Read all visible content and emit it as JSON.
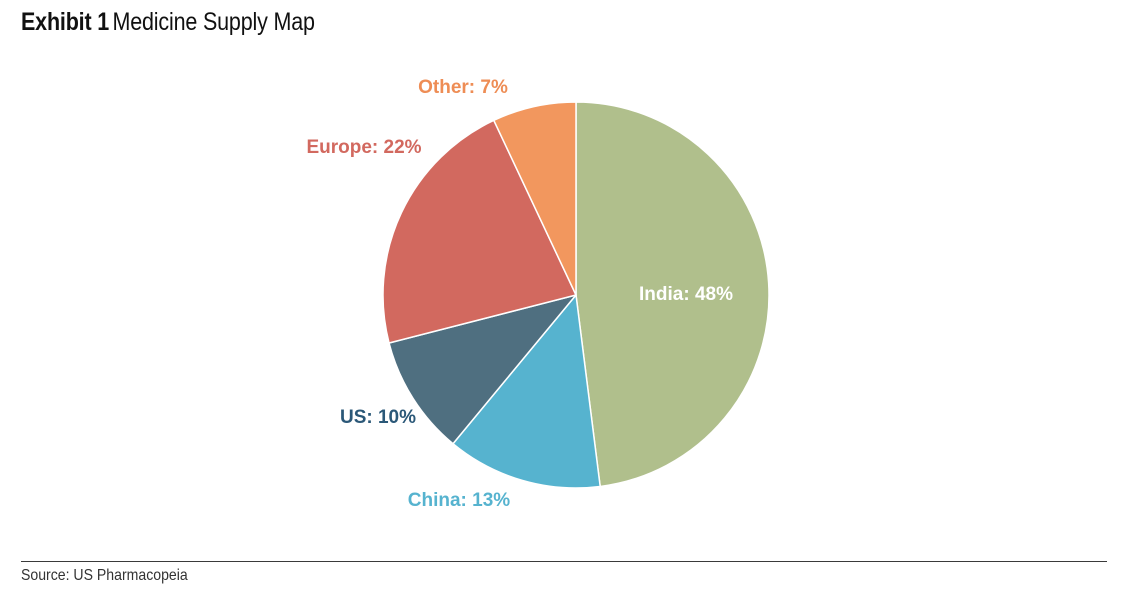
{
  "header": {
    "exhibit_label": "Exhibit 1",
    "title": "Medicine Supply Map"
  },
  "chart_data": {
    "type": "pie",
    "title": "Medicine Supply Map",
    "start_angle_deg": 0,
    "direction": "clockwise",
    "slices": [
      {
        "label": "India",
        "value": 48,
        "display": "India: 48%",
        "color": "#b0bf8c",
        "label_color": "#ffffff"
      },
      {
        "label": "China",
        "value": 13,
        "display": "China: 13%",
        "color": "#56b3cf",
        "label_color": "#56b3cf"
      },
      {
        "label": "US",
        "value": 10,
        "display": "US: 10%",
        "color": "#4f6f80",
        "label_color": "#2b5878"
      },
      {
        "label": "Europe",
        "value": 22,
        "display": "Europe: 22%",
        "color": "#d2695f",
        "label_color": "#d2695f"
      },
      {
        "label": "Other",
        "value": 7,
        "display": "Other: 7%",
        "color": "#f2975e",
        "label_color": "#ee8d55"
      }
    ]
  },
  "footer": {
    "source": "Source: US Pharmacopeia"
  }
}
